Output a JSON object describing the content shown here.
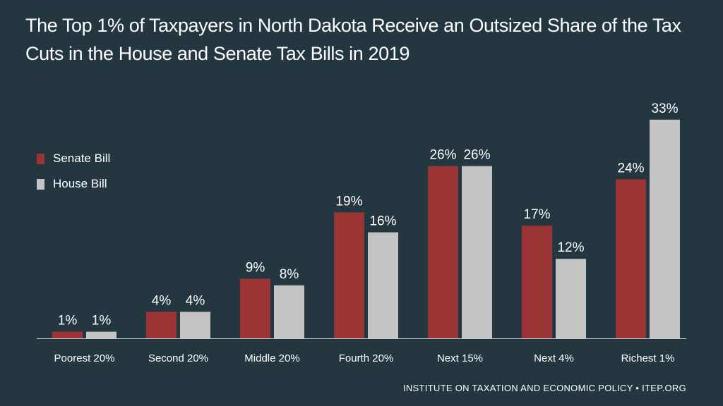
{
  "title_line1": "The Top 1% of Taxpayers in North Dakota Receive an Outsized Share of the Tax",
  "title_line2": "Cuts in the House and Senate Tax Bills in 2019",
  "footer": "INSTITUTE ON TAXATION AND ECONOMIC POLICY • ITEP.ORG",
  "colors": {
    "background": "#243640",
    "senate": "#9B3535",
    "house": "#C4C4C4",
    "axis": "#CCCCCC",
    "text": "#FFFFFF"
  },
  "chart_data": {
    "type": "bar",
    "title": "The Top 1% of Taxpayers in North Dakota Receive an Outsized Share of the Tax Cuts in the House and Senate Tax Bills in 2019",
    "categories": [
      "Poorest 20%",
      "Second 20%",
      "Middle 20%",
      "Fourth 20%",
      "Next 15%",
      "Next 4%",
      "Richest 1%"
    ],
    "series": [
      {
        "name": "Senate Bill",
        "values": [
          1,
          4,
          9,
          19,
          26,
          17,
          24
        ],
        "labels": [
          "1%",
          "4%",
          "9%",
          "19%",
          "26%",
          "17%",
          "24%"
        ]
      },
      {
        "name": "House Bill",
        "values": [
          1,
          4,
          8,
          16,
          26,
          12,
          33
        ],
        "labels": [
          "1%",
          "4%",
          "8%",
          "16%",
          "26%",
          "12%",
          "33%"
        ]
      }
    ],
    "xlabel": "",
    "ylabel": "",
    "ylim": [
      0,
      33
    ],
    "grid": false,
    "legend": "left"
  }
}
